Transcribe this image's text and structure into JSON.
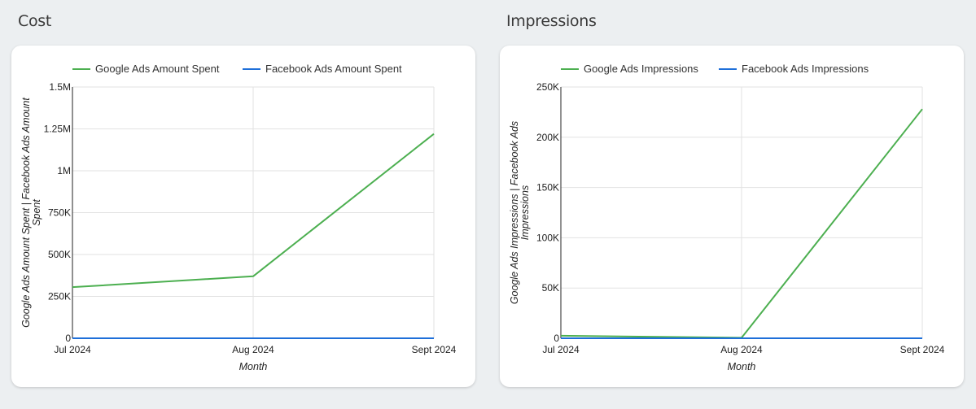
{
  "sections": [
    {
      "title": "Cost"
    },
    {
      "title": "Impressions"
    }
  ],
  "colors": {
    "google": "#4caf50",
    "facebook": "#1e6fd9"
  },
  "chart_data": [
    {
      "type": "line",
      "title": "Cost",
      "categories": [
        "Jul 2024",
        "Aug 2024",
        "Sept 2024"
      ],
      "series": [
        {
          "name": "Google Ads Amount Spent",
          "color": "#4caf50",
          "values": [
            305000,
            370000,
            1220000
          ]
        },
        {
          "name": "Facebook Ads Amount Spent",
          "color": "#1e6fd9",
          "values": [
            0,
            0,
            0
          ]
        }
      ],
      "xlabel": "Month",
      "ylabel_lines": [
        "Google Ads Amount Spent | Facebook Ads Amount",
        "Spent"
      ],
      "ylim": [
        0,
        1500000
      ],
      "yticks": [
        {
          "value": 0,
          "label": "0"
        },
        {
          "value": 250000,
          "label": "250K"
        },
        {
          "value": 500000,
          "label": "500K"
        },
        {
          "value": 750000,
          "label": "750K"
        },
        {
          "value": 1000000,
          "label": "1M"
        },
        {
          "value": 1250000,
          "label": "1.25M"
        },
        {
          "value": 1500000,
          "label": "1.5M"
        }
      ],
      "grid": true,
      "legend_position": "top"
    },
    {
      "type": "line",
      "title": "Impressions",
      "categories": [
        "Jul 2024",
        "Aug 2024",
        "Sept 2024"
      ],
      "series": [
        {
          "name": "Google Ads Impressions",
          "color": "#4caf50",
          "values": [
            2500,
            500,
            228000
          ]
        },
        {
          "name": "Facebook Ads Impressions",
          "color": "#1e6fd9",
          "values": [
            0,
            0,
            0
          ]
        }
      ],
      "xlabel": "Month",
      "ylabel_lines": [
        "Google Ads Impressions | Facebook Ads",
        "Impressions"
      ],
      "ylim": [
        0,
        250000
      ],
      "yticks": [
        {
          "value": 0,
          "label": "0"
        },
        {
          "value": 50000,
          "label": "50K"
        },
        {
          "value": 100000,
          "label": "100K"
        },
        {
          "value": 150000,
          "label": "150K"
        },
        {
          "value": 200000,
          "label": "200K"
        },
        {
          "value": 250000,
          "label": "250K"
        }
      ],
      "grid": true,
      "legend_position": "top"
    }
  ]
}
